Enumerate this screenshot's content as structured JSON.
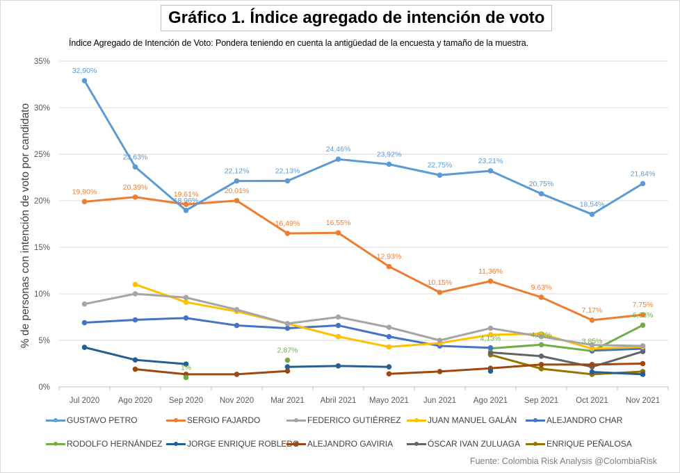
{
  "header": {
    "title": "Gráfico 1. Índice agregado de intención de voto",
    "subtitle": "Índice Agregado de Intención de Voto: Pondera teniendo en cuenta la antigüedad de la encuesta y tamaño de la muestra."
  },
  "footer": {
    "source": "Fuente: Colombia Risk Analysis @ColombiaRisk"
  },
  "chart_data": {
    "type": "line",
    "title": "Gráfico 1. Índice agregado de intención de voto",
    "xlabel": "",
    "ylabel": "% de personas con intención de voto por candidato",
    "ylim": [
      0,
      35
    ],
    "yticks": [
      "0%",
      "5%",
      "10%",
      "15%",
      "20%",
      "25%",
      "30%",
      "35%"
    ],
    "ytick_values": [
      0,
      5,
      10,
      15,
      20,
      25,
      30,
      35
    ],
    "grid": true,
    "legend": "bottom",
    "categories": [
      "Jul 2020",
      "Ago 2020",
      "Sep 2020",
      "Nov 2020",
      "Mar 2021",
      "Abril 2021",
      "Mayo 2021",
      "Jun 2021",
      "Ago 2021",
      "Sep 2021",
      "Oct 2021",
      "Nov 2021"
    ],
    "series": [
      {
        "name": "GUSTAVO PETRO",
        "color": "#5b9bd5",
        "values": [
          32.9,
          23.63,
          18.96,
          22.12,
          22.13,
          24.46,
          23.92,
          22.75,
          23.21,
          20.75,
          18.54,
          21.84
        ],
        "labels": [
          "32,90%",
          "23,63%",
          "18,96%",
          "22,12%",
          "22,13%",
          "24,46%",
          "23,92%",
          "22,75%",
          "23,21%",
          "20,75%",
          "18,54%",
          "21,84%"
        ]
      },
      {
        "name": "SERGIO FAJARDO",
        "color": "#ed7d31",
        "values": [
          19.9,
          20.39,
          19.61,
          20.01,
          16.49,
          16.55,
          12.93,
          10.15,
          11.36,
          9.63,
          7.17,
          7.75
        ],
        "labels": [
          "19,90%",
          "20,39%",
          "19,61%",
          "20,01%",
          "16,49%",
          "16,55%",
          "12,93%",
          "10,15%",
          "11,36%",
          "9,63%",
          "7,17%",
          "7,75%"
        ]
      },
      {
        "name": "FEDERICO GUTIÉRREZ",
        "color": "#a5a5a5",
        "values": [
          8.9,
          10.0,
          9.6,
          8.3,
          6.8,
          7.5,
          6.4,
          5.0,
          6.3,
          5.4,
          4.5,
          4.4
        ]
      },
      {
        "name": "JUAN MANUEL GALÁN",
        "color": "#ffc000",
        "values": [
          null,
          11.0,
          9.1,
          8.1,
          6.8,
          5.4,
          4.3,
          4.7,
          5.6,
          5.7,
          4.1,
          4.3
        ]
      },
      {
        "name": "ALEJANDRO CHAR",
        "color": "#4472c4",
        "values": [
          6.9,
          7.2,
          7.4,
          6.6,
          6.3,
          6.6,
          5.4,
          4.4,
          4.2,
          null,
          3.9,
          4.1
        ]
      },
      {
        "name": "RODOLFO HERNÁNDEZ",
        "color": "#70ad47",
        "values": [
          null,
          null,
          1.0,
          null,
          2.87,
          null,
          null,
          null,
          4.13,
          4.53,
          3.85,
          6.63
        ],
        "labels": [
          null,
          null,
          "1%",
          null,
          "2,87%",
          null,
          null,
          null,
          "4,13%",
          "4,53%",
          "3,85%",
          "6,63%"
        ]
      },
      {
        "name": "JORGE ENRIQUE ROBLEDO",
        "color": "#255e91",
        "values": [
          4.25,
          2.9,
          2.45,
          null,
          2.15,
          2.25,
          2.15,
          null,
          1.7,
          null,
          1.6,
          1.35
        ]
      },
      {
        "name": "ALEJANDRO GAVIRIA",
        "color": "#9e480e",
        "values": [
          null,
          1.9,
          1.35,
          1.35,
          1.7,
          null,
          1.4,
          1.65,
          2.0,
          2.4,
          2.4,
          2.5
        ]
      },
      {
        "name": "ÓSCAR IVAN ZULUAGA",
        "color": "#636363",
        "values": [
          null,
          null,
          null,
          null,
          null,
          null,
          null,
          null,
          3.7,
          3.3,
          2.15,
          3.8
        ]
      },
      {
        "name": "ENRIQUE PEÑALOSA",
        "color": "#997300",
        "values": [
          null,
          null,
          null,
          null,
          null,
          null,
          null,
          null,
          3.45,
          1.95,
          1.35,
          1.65
        ]
      }
    ]
  }
}
